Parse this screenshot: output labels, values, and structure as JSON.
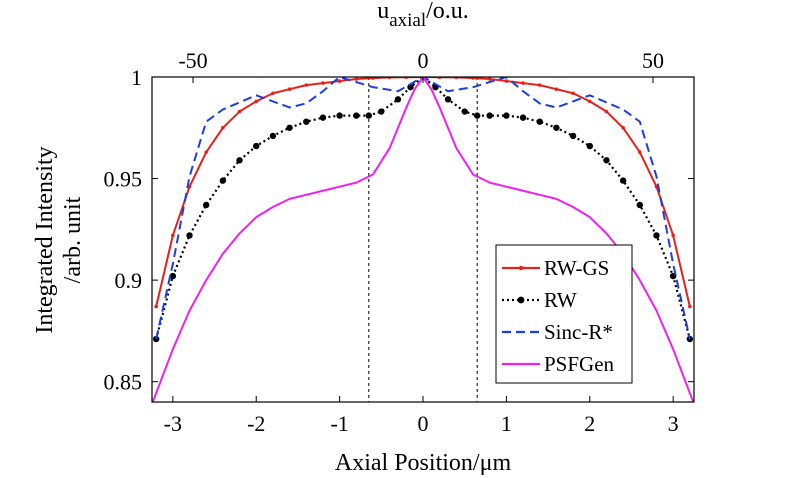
{
  "chart_data": {
    "type": "line",
    "title": "",
    "xlabel": "Axial Position/μm",
    "ylabel_line1": "Integrated Intensity",
    "ylabel_line2": "/arb. unit",
    "top_xlabel": {
      "base": "u",
      "subscript": "axial",
      "suffix": "/o.u."
    },
    "xlim": [
      -3.25,
      3.25
    ],
    "ylim": [
      0.84,
      1.0
    ],
    "xticks": [
      -3,
      -2,
      -1,
      0,
      1,
      2,
      3
    ],
    "xtick_labels": [
      "-3",
      "-2",
      "-1",
      "0",
      "1",
      "2",
      "3"
    ],
    "yticks": [
      0.85,
      0.9,
      0.95,
      1.0
    ],
    "ytick_labels": [
      "0.85",
      "0.9",
      "0.95",
      "1"
    ],
    "top_xticks": [
      -50,
      0,
      50
    ],
    "top_xtick_labels": [
      "-50",
      "0",
      "50"
    ],
    "top_x_scale": 18.13,
    "vertical_reference_lines": [
      -0.65,
      0.65
    ],
    "legend_position": "bottom-right",
    "series": [
      {
        "name": "RW-GS",
        "color": "#e8201a",
        "style": "solid",
        "marker": "dot",
        "x": [
          -3.2,
          -3.0,
          -2.8,
          -2.6,
          -2.4,
          -2.2,
          -2.0,
          -1.8,
          -1.6,
          -1.4,
          -1.2,
          -1.0,
          -0.8,
          -0.6,
          -0.4,
          -0.2,
          0.0,
          0.2,
          0.4,
          0.6,
          0.8,
          1.0,
          1.2,
          1.4,
          1.6,
          1.8,
          2.0,
          2.2,
          2.4,
          2.6,
          2.8,
          3.0,
          3.2
        ],
        "y": [
          0.887,
          0.922,
          0.946,
          0.963,
          0.975,
          0.983,
          0.988,
          0.992,
          0.994,
          0.996,
          0.997,
          0.998,
          0.999,
          0.9995,
          0.9998,
          0.9999,
          1.0,
          0.9999,
          0.9998,
          0.9995,
          0.999,
          0.998,
          0.997,
          0.996,
          0.994,
          0.992,
          0.988,
          0.983,
          0.975,
          0.963,
          0.946,
          0.922,
          0.887
        ]
      },
      {
        "name": "RW",
        "color": "#000000",
        "style": "dotted",
        "marker": "circle",
        "x": [
          -3.2,
          -3.0,
          -2.8,
          -2.6,
          -2.4,
          -2.2,
          -2.0,
          -1.8,
          -1.6,
          -1.4,
          -1.2,
          -1.0,
          -0.8,
          -0.65,
          -0.5,
          -0.3,
          -0.15,
          0.0,
          0.15,
          0.3,
          0.5,
          0.65,
          0.8,
          1.0,
          1.2,
          1.4,
          1.6,
          1.8,
          2.0,
          2.2,
          2.4,
          2.6,
          2.8,
          3.0,
          3.2
        ],
        "y": [
          0.871,
          0.902,
          0.922,
          0.937,
          0.949,
          0.959,
          0.966,
          0.971,
          0.975,
          0.978,
          0.98,
          0.981,
          0.981,
          0.981,
          0.983,
          0.989,
          0.995,
          1.0,
          0.995,
          0.989,
          0.983,
          0.981,
          0.981,
          0.981,
          0.98,
          0.978,
          0.975,
          0.971,
          0.966,
          0.959,
          0.949,
          0.937,
          0.922,
          0.902,
          0.871
        ]
      },
      {
        "name": "Sinc-R*",
        "color": "#1c3fe0",
        "style": "dashed",
        "marker": "none",
        "x": [
          -3.2,
          -3.0,
          -2.8,
          -2.6,
          -2.4,
          -2.0,
          -1.6,
          -1.4,
          -1.2,
          -1.0,
          -0.6,
          -0.3,
          0.0,
          0.3,
          0.6,
          1.0,
          1.2,
          1.4,
          1.6,
          2.0,
          2.4,
          2.6,
          2.8,
          3.0,
          3.2
        ],
        "y": [
          0.871,
          0.908,
          0.951,
          0.978,
          0.984,
          0.991,
          0.985,
          0.987,
          0.993,
          1.0,
          0.995,
          0.993,
          1.0,
          0.993,
          0.995,
          1.0,
          0.993,
          0.987,
          0.985,
          0.991,
          0.984,
          0.978,
          0.951,
          0.908,
          0.871
        ]
      },
      {
        "name": "PSFGen",
        "color": "#f020f0",
        "style": "solid",
        "marker": "none",
        "x": [
          -3.25,
          -3.0,
          -2.8,
          -2.6,
          -2.4,
          -2.2,
          -2.0,
          -1.8,
          -1.6,
          -1.4,
          -1.2,
          -1.0,
          -0.8,
          -0.6,
          -0.4,
          -0.2,
          -0.1,
          0.0,
          0.1,
          0.2,
          0.4,
          0.6,
          0.8,
          1.0,
          1.2,
          1.4,
          1.6,
          1.8,
          2.0,
          2.2,
          2.4,
          2.6,
          2.8,
          3.0,
          3.25
        ],
        "y": [
          0.839,
          0.866,
          0.885,
          0.9,
          0.913,
          0.923,
          0.931,
          0.936,
          0.94,
          0.942,
          0.944,
          0.946,
          0.948,
          0.952,
          0.965,
          0.985,
          0.994,
          1.0,
          0.994,
          0.985,
          0.965,
          0.952,
          0.948,
          0.946,
          0.944,
          0.942,
          0.94,
          0.936,
          0.931,
          0.923,
          0.913,
          0.9,
          0.885,
          0.866,
          0.839
        ]
      }
    ]
  }
}
